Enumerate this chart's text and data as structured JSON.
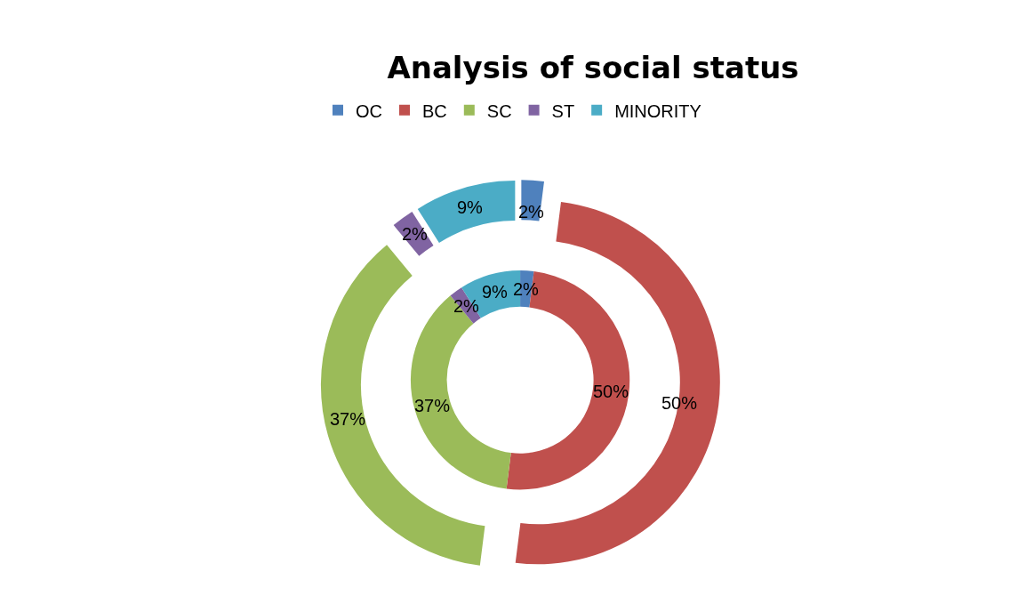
{
  "chart_data": {
    "type": "donut",
    "title": "Analysis of social status",
    "categories": [
      "OC",
      "BC",
      "SC",
      "ST",
      "MINORITY"
    ],
    "colors": [
      "#4f81bd",
      "#c0504d",
      "#9bbb59",
      "#8064a2",
      "#4bacc6"
    ],
    "series": [
      {
        "values": [
          2,
          50,
          37,
          2,
          9
        ],
        "value_labels": [
          "2%",
          "50%",
          "37%",
          "2%",
          "9%"
        ]
      },
      {
        "values": [
          2,
          50,
          37,
          2,
          9
        ],
        "value_labels": [
          "2%",
          "50%",
          "37%",
          "2%",
          "9%"
        ]
      }
    ],
    "legend": "top"
  }
}
